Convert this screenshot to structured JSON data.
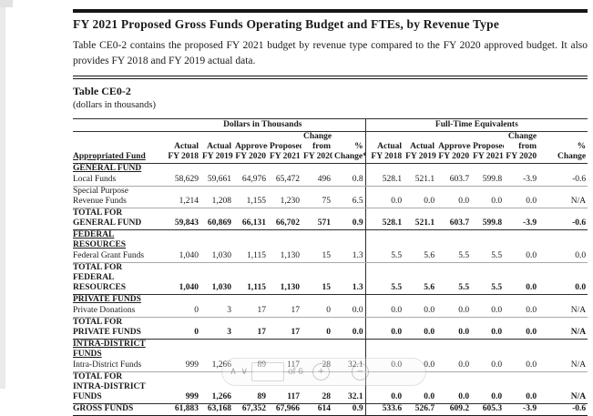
{
  "page": {
    "title": "FY 2021 Proposed Gross Funds Operating Budget and FTEs, by Revenue Type",
    "intro": "Table CE0-2 contains the proposed FY 2021 budget by revenue type compared to the FY 2020 approved budget. It also provides FY 2018 and FY 2019 actual data.",
    "table_label": "Table CE0-2",
    "table_sublabel": "(dollars in thousands)"
  },
  "table": {
    "group_headers": [
      "Dollars in Thousands",
      "Full-Time Equivalents"
    ],
    "col1_header": "Appropriated Fund",
    "dollar_col_headers": [
      [
        "Actual",
        "FY 2018"
      ],
      [
        "Actual",
        "FY 2019"
      ],
      [
        "Approved",
        "FY 2020"
      ],
      [
        "Proposed",
        "FY 2021"
      ],
      [
        "Change",
        "from",
        "FY 2020"
      ],
      [
        "%",
        "Change*"
      ]
    ],
    "fte_col_headers": [
      [
        "Actual",
        "FY 2018"
      ],
      [
        "Actual",
        "FY 2019"
      ],
      [
        "Approved",
        "FY 2020"
      ],
      [
        "Proposed",
        "FY 2021"
      ],
      [
        "Change",
        "from",
        "FY 2020"
      ],
      [
        "%",
        "Change"
      ]
    ],
    "rows": [
      {
        "type": "section",
        "label": [
          "GENERAL FUND"
        ],
        "dollars": [],
        "ftes": []
      },
      {
        "type": "data",
        "label": [
          "Local Funds"
        ],
        "dollars": [
          "58,629",
          "59,661",
          "64,976",
          "65,472",
          "496",
          "0.8"
        ],
        "ftes": [
          "528.1",
          "521.1",
          "603.7",
          "599.8",
          "-3.9",
          "-0.6"
        ]
      },
      {
        "type": "data",
        "label": [
          "Special Purpose",
          "Revenue Funds"
        ],
        "dollars": [
          "1,214",
          "1,208",
          "1,155",
          "1,230",
          "75",
          "6.5"
        ],
        "ftes": [
          "0.0",
          "0.0",
          "0.0",
          "0.0",
          "0.0",
          "N/A"
        ]
      },
      {
        "type": "total",
        "label": [
          "TOTAL FOR",
          "GENERAL FUND"
        ],
        "dollars": [
          "59,843",
          "60,869",
          "66,131",
          "66,702",
          "571",
          "0.9"
        ],
        "ftes": [
          "528.1",
          "521.1",
          "603.7",
          "599.8",
          "-3.9",
          "-0.6"
        ]
      },
      {
        "type": "section",
        "label": [
          "FEDERAL",
          "RESOURCES"
        ],
        "dollars": [],
        "ftes": []
      },
      {
        "type": "data",
        "label": [
          "Federal Grant Funds"
        ],
        "dollars": [
          "1,040",
          "1,030",
          "1,115",
          "1,130",
          "15",
          "1.3"
        ],
        "ftes": [
          "5.5",
          "5.6",
          "5.5",
          "5.5",
          "0.0",
          "0.0"
        ]
      },
      {
        "type": "total",
        "label": [
          "TOTAL FOR",
          "FEDERAL",
          "RESOURCES"
        ],
        "dollars": [
          "1,040",
          "1,030",
          "1,115",
          "1,130",
          "15",
          "1.3"
        ],
        "ftes": [
          "5.5",
          "5.6",
          "5.5",
          "5.5",
          "0.0",
          "0.0"
        ]
      },
      {
        "type": "section",
        "label": [
          "PRIVATE FUNDS"
        ],
        "dollars": [],
        "ftes": []
      },
      {
        "type": "data",
        "label": [
          "Private Donations"
        ],
        "dollars": [
          "0",
          "3",
          "17",
          "17",
          "0",
          "0.0"
        ],
        "ftes": [
          "0.0",
          "0.0",
          "0.0",
          "0.0",
          "0.0",
          "N/A"
        ]
      },
      {
        "type": "total",
        "label": [
          "TOTAL FOR",
          "PRIVATE FUNDS"
        ],
        "dollars": [
          "0",
          "3",
          "17",
          "17",
          "0",
          "0.0"
        ],
        "ftes": [
          "0.0",
          "0.0",
          "0.0",
          "0.0",
          "0.0",
          "N/A"
        ]
      },
      {
        "type": "section",
        "label": [
          "INTRA-DISTRICT",
          "FUNDS"
        ],
        "dollars": [],
        "ftes": []
      },
      {
        "type": "data",
        "label": [
          "Intra-District Funds"
        ],
        "dollars": [
          "999",
          "1,266",
          "89",
          "117",
          "28",
          "32.1"
        ],
        "ftes": [
          "0.0",
          "0.0",
          "0.0",
          "0.0",
          "0.0",
          "N/A"
        ]
      },
      {
        "type": "total",
        "label": [
          "TOTAL FOR",
          "INTRA-DISTRICT",
          "FUNDS"
        ],
        "dollars": [
          "999",
          "1,266",
          "89",
          "117",
          "28",
          "32.1"
        ],
        "ftes": [
          "0.0",
          "0.0",
          "0.0",
          "0.0",
          "0.0",
          "N/A"
        ]
      },
      {
        "type": "grand",
        "label": [
          "GROSS FUNDS"
        ],
        "dollars": [
          "61,883",
          "63,168",
          "67,352",
          "67,966",
          "614",
          "0.9"
        ],
        "ftes": [
          "533.6",
          "526.7",
          "609.2",
          "605.3",
          "-3.9",
          "-0.6"
        ]
      }
    ]
  },
  "overlay": {
    "prev_glyph": "∧",
    "next_glyph": "∨",
    "page_input_value": "",
    "page_count_label": "of 6",
    "zoom_in_glyph": "+",
    "zoom_out_glyph": "−"
  }
}
